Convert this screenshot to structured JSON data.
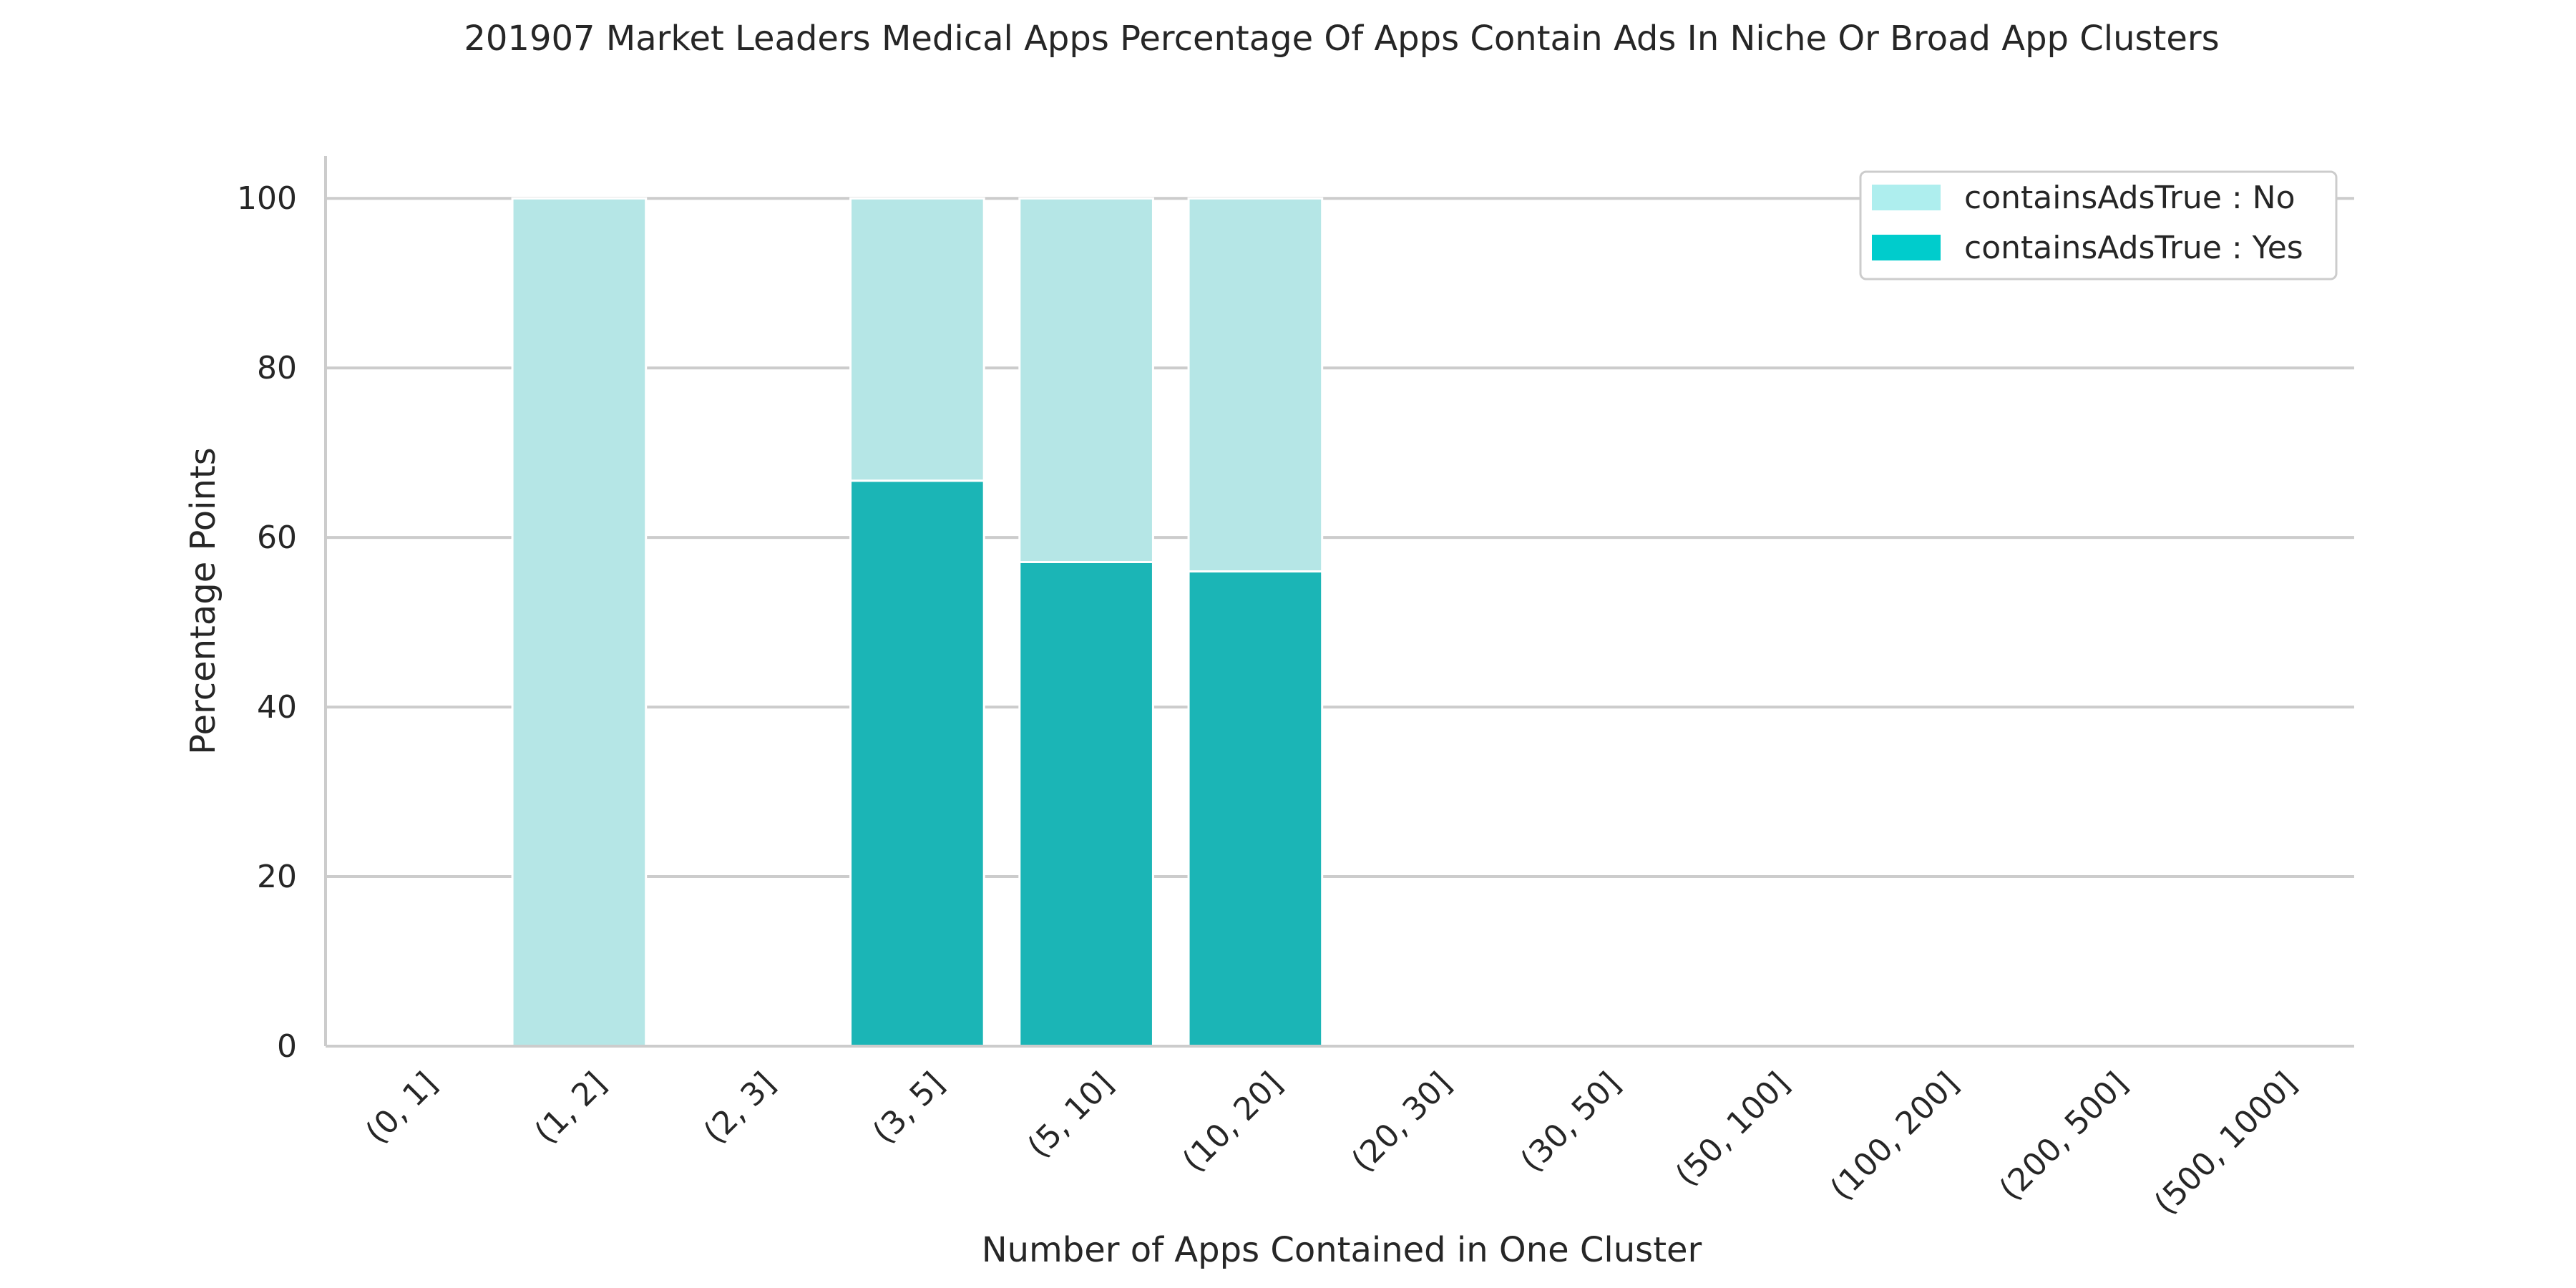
{
  "chart_data": {
    "type": "bar",
    "stacked": true,
    "title": "201907 Market Leaders Medical Apps Percentage Of Apps Contain Ads In Niche Or Broad App Clusters",
    "xlabel": "Number of Apps Contained in One Cluster",
    "ylabel": "Percentage Points",
    "ylim": [
      0,
      105
    ],
    "yticks": [
      0,
      20,
      40,
      60,
      80,
      100
    ],
    "grid": "horizontal",
    "legend_position": "top-right",
    "categories": [
      "(0, 1]",
      "(1, 2]",
      "(2, 3]",
      "(3, 5]",
      "(5, 10]",
      "(10, 20]",
      "(20, 30]",
      "(30, 50]",
      "(50, 100]",
      "(100, 200]",
      "(200, 500]",
      "(500, 1000]"
    ],
    "series": [
      {
        "name": "containsAdsTrue : Yes",
        "color": "#1bb5b6",
        "legend_color": "#00cccc",
        "values": [
          0,
          0,
          0,
          66.7,
          57.1,
          56.0,
          0,
          0,
          0,
          0,
          0,
          0
        ]
      },
      {
        "name": "containsAdsTrue : No",
        "color": "#b5e6e6",
        "legend_color": "#aeeeee",
        "values": [
          0,
          100,
          0,
          33.3,
          42.9,
          44.0,
          0,
          0,
          0,
          0,
          0,
          0
        ]
      }
    ],
    "legend_order": [
      "containsAdsTrue : No",
      "containsAdsTrue : Yes"
    ]
  }
}
